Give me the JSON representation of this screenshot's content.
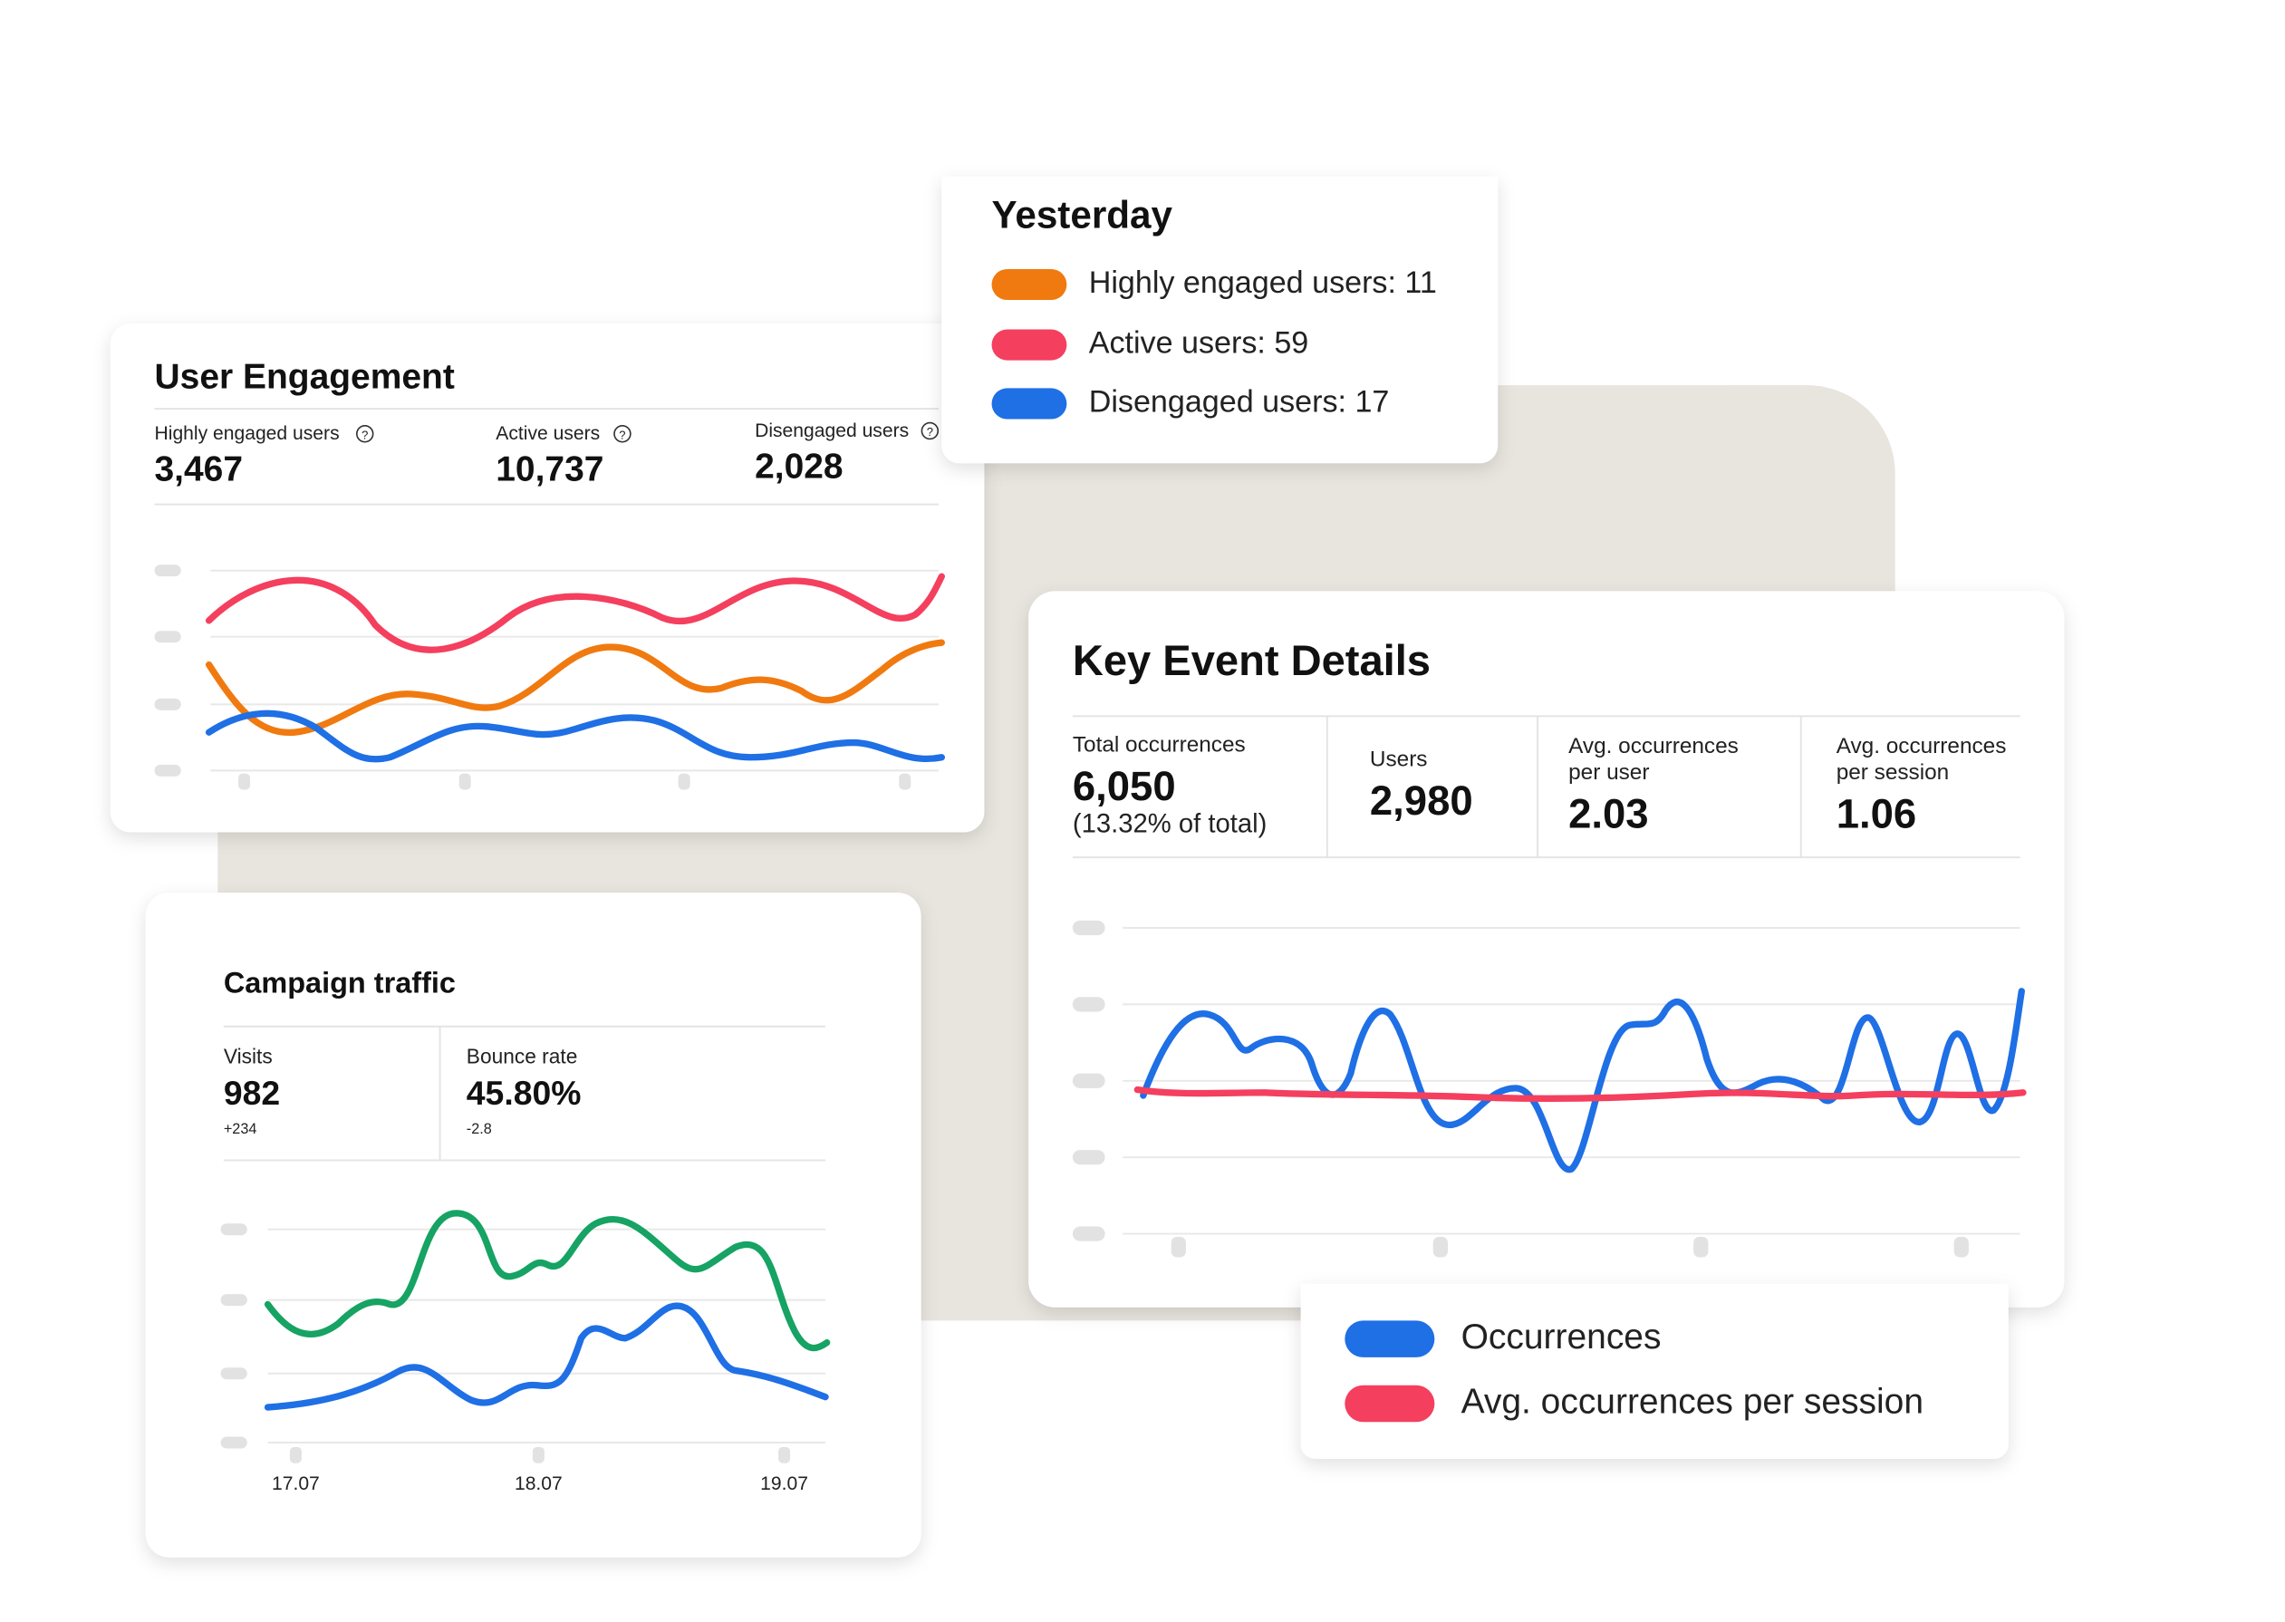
{
  "help_icon": "?",
  "user_engagement": {
    "title": "User Engagement",
    "metrics": [
      {
        "label": "Highly engaged users",
        "value": "3,467"
      },
      {
        "label": "Active users",
        "value": "10,737"
      },
      {
        "label": "Disengaged users",
        "value": "2,028"
      }
    ]
  },
  "yesterday": {
    "title": "Yesterday",
    "items": [
      "Highly engaged users: 11",
      "Active users: 59",
      "Disengaged users: 17"
    ]
  },
  "key_event": {
    "title": "Key Event Details",
    "metrics": [
      {
        "label": [
          "Total occurrences"
        ],
        "value": "6,050",
        "note": "(13.32% of total)"
      },
      {
        "label": [
          "Users"
        ],
        "value": "2,980"
      },
      {
        "label": [
          "Avg. occurrences",
          "per user"
        ],
        "value": "2.03"
      },
      {
        "label": [
          "Avg. occurrences",
          "per session"
        ],
        "value": "1.06"
      }
    ],
    "legend": [
      "Occurrences",
      "Avg. occurrences per session"
    ]
  },
  "campaign": {
    "title": "Campaign traffic",
    "metrics": [
      {
        "label": "Visits",
        "value": "982",
        "delta": "+234"
      },
      {
        "label": "Bounce rate",
        "value": "45.80%",
        "delta": "-2.8"
      }
    ],
    "dates": [
      "17.07",
      "18.07",
      "19.07"
    ]
  }
}
